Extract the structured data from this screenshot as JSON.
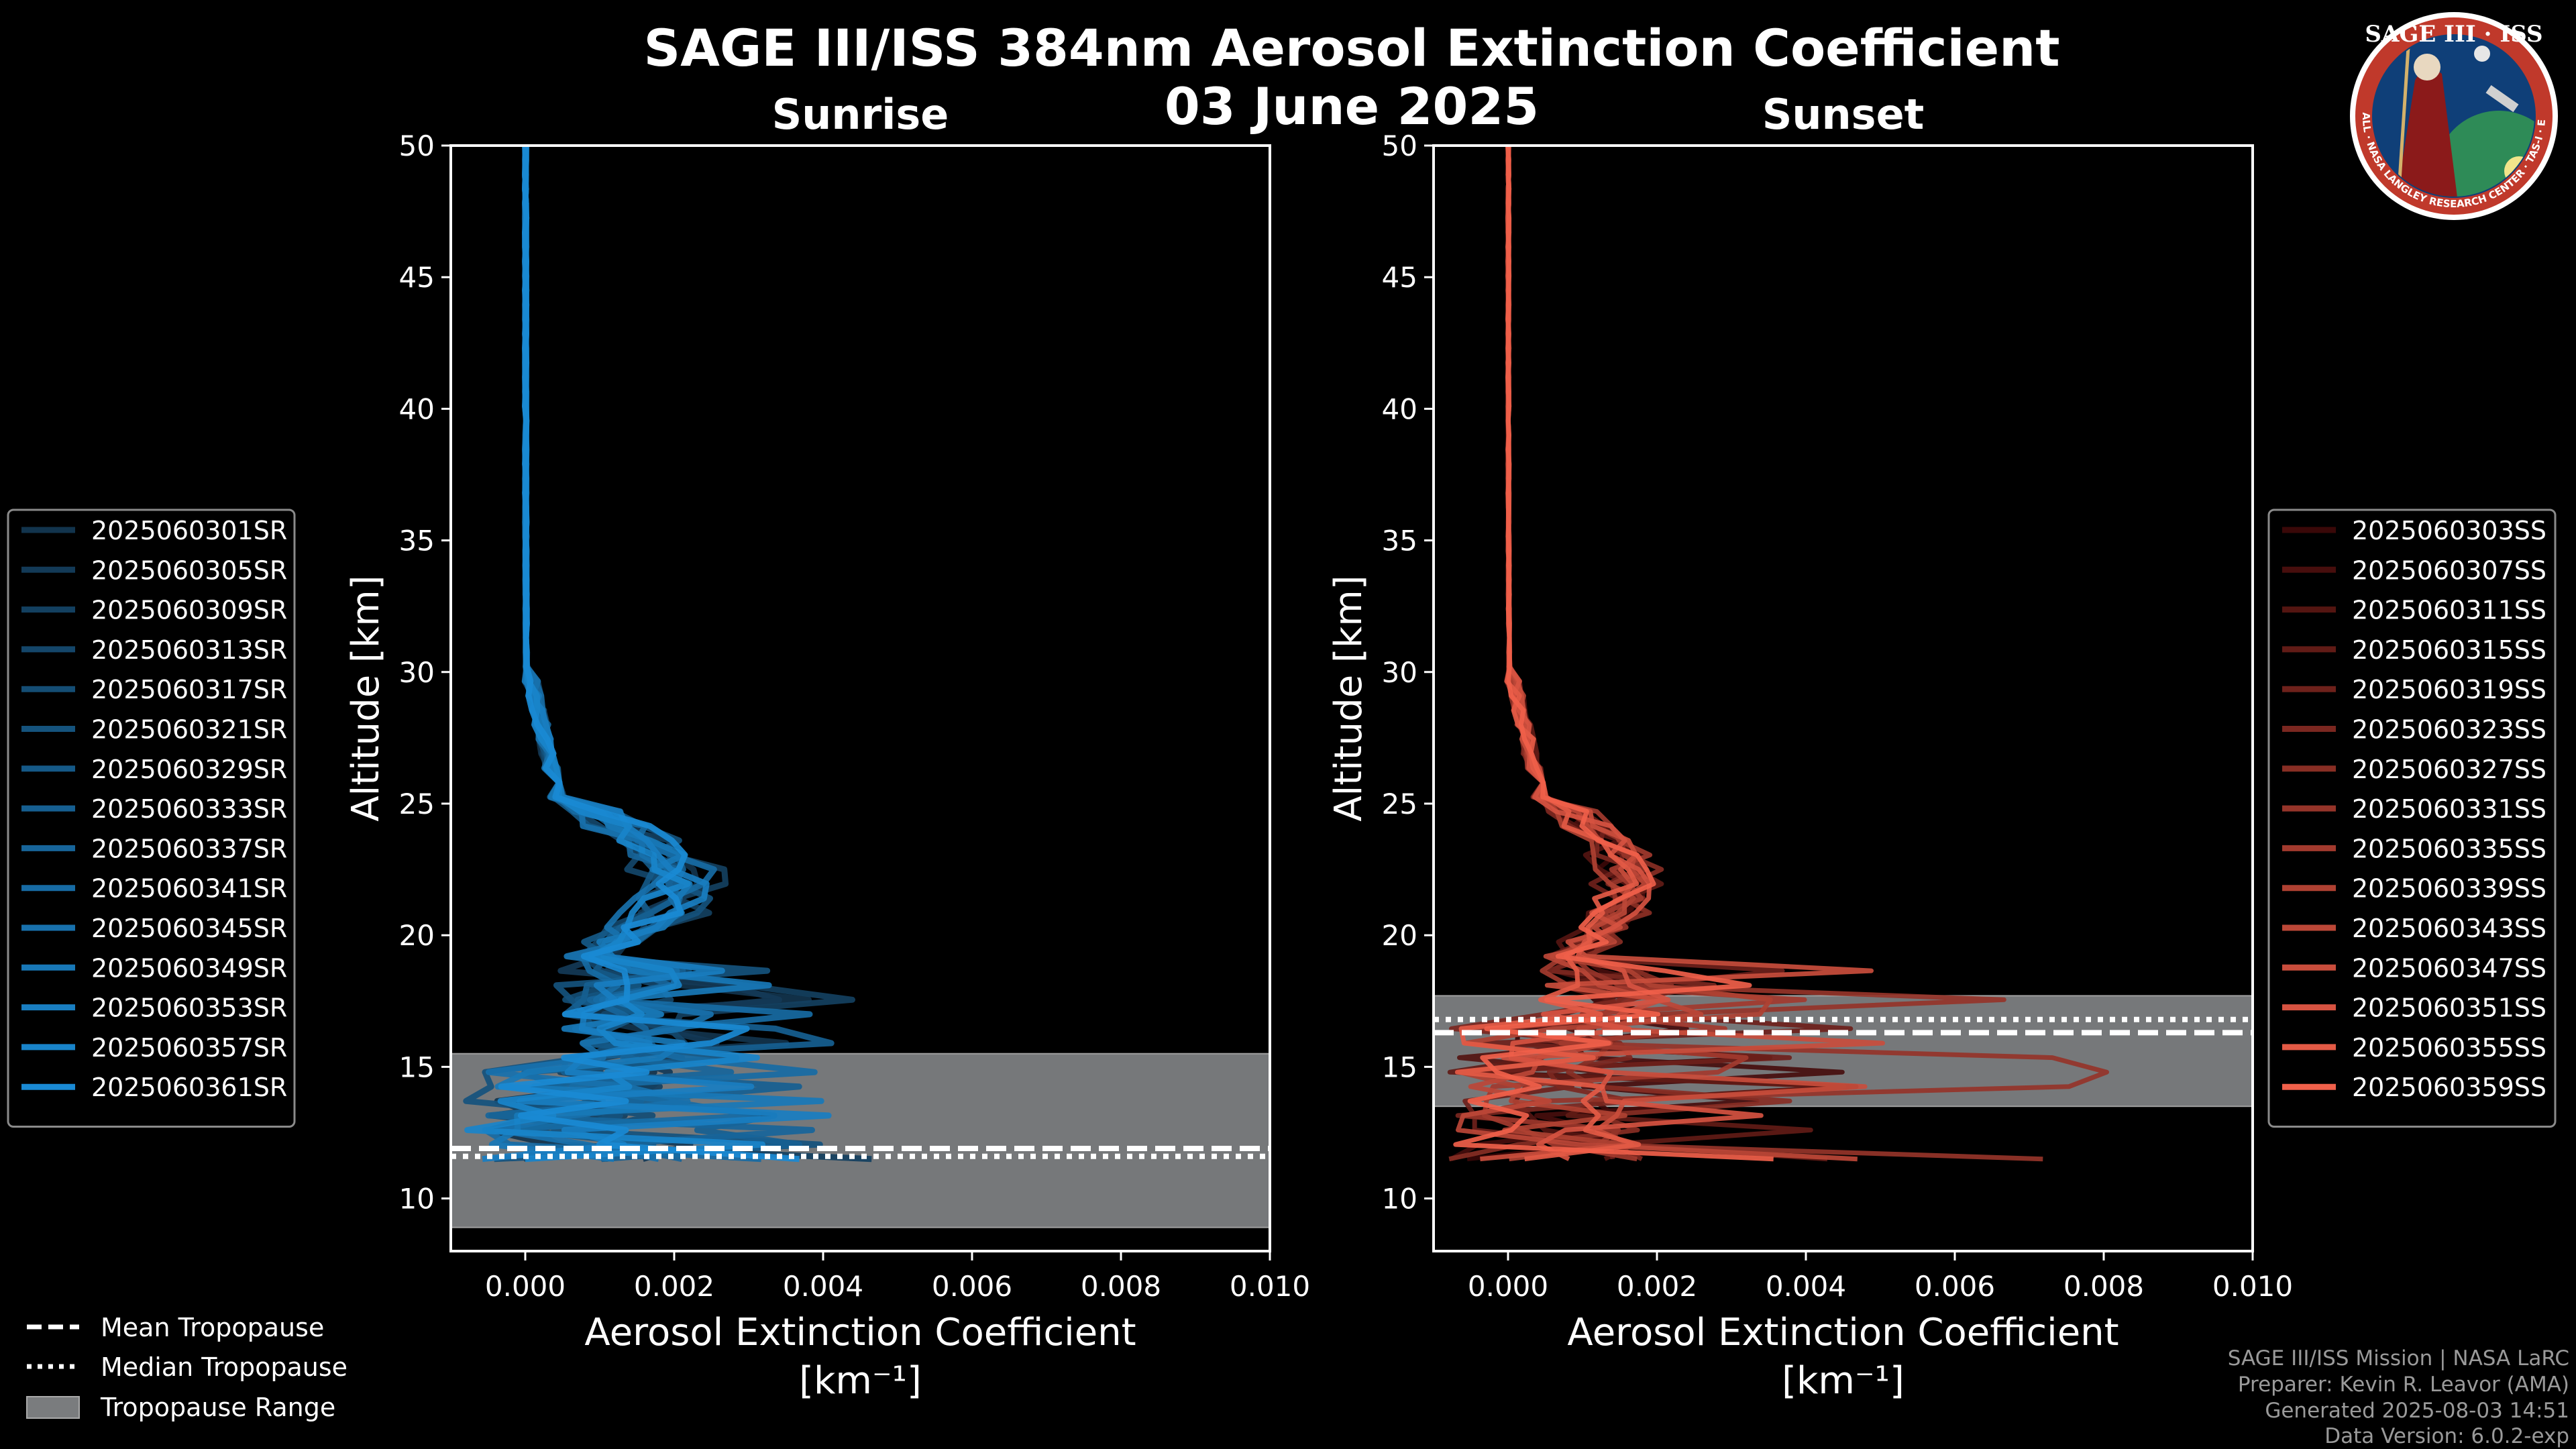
{
  "title": "SAGE III/ISS 384nm Aerosol Extinction Coefficient",
  "subtitle": "03 June 2025",
  "logo": {
    "top_text": "SAGE III · ISS",
    "ring_text": "BALL · NASA LANGLEY RESEARCH CENTER · TAS-I · ESA",
    "colors": {
      "ring": "#c0392b",
      "inner": "#0f3f78",
      "border": "#ffffff"
    }
  },
  "credits": [
    "SAGE III/ISS Mission | NASA LaRC",
    "Preparer: Kevin R. Leavor (AMA)",
    "Generated 2025-08-03 14:51",
    "Data Version: 6.0.2-exp"
  ],
  "bottom_legend": [
    {
      "style": "dashed",
      "label": "Mean Tropopause"
    },
    {
      "style": "dotted",
      "label": "Median Tropopause"
    },
    {
      "style": "range",
      "label": "Tropopause Range"
    }
  ],
  "chart_data": [
    {
      "type": "line",
      "panel": "Sunrise",
      "title": "Sunrise",
      "xlabel": "Aerosol Extinction Coefficient",
      "xlabel_units": "[km⁻¹]",
      "ylabel": "Altitude [km]",
      "xlim": [
        -0.001,
        0.01
      ],
      "ylim": [
        8,
        50
      ],
      "xticks": [
        0.0,
        0.002,
        0.004,
        0.006,
        0.008,
        0.01
      ],
      "xtick_labels": [
        "0.000",
        "0.002",
        "0.004",
        "0.006",
        "0.008",
        "0.010"
      ],
      "yticks": [
        10,
        15,
        20,
        25,
        30,
        35,
        40,
        45,
        50
      ],
      "tropopause": {
        "mean": 11.9,
        "median": 11.6,
        "range": [
          8.9,
          15.5
        ]
      },
      "color_dark": "#12344d",
      "color_light": "#1a8ad4",
      "series": [
        {
          "name": "2025060301SR",
          "peak": 0.0024,
          "low_spike": 0.003
        },
        {
          "name": "2025060305SR",
          "peak": 0.002,
          "low_spike": 0.0022
        },
        {
          "name": "2025060309SR",
          "peak": 0.0027,
          "low_spike": 0.0037
        },
        {
          "name": "2025060313SR",
          "peak": 0.0018,
          "low_spike": 0.0025
        },
        {
          "name": "2025060317SR",
          "peak": 0.0022,
          "low_spike": 0.0032
        },
        {
          "name": "2025060321SR",
          "peak": 0.0025,
          "low_spike": 0.0028
        },
        {
          "name": "2025060329SR",
          "peak": 0.0019,
          "low_spike": 0.0021
        },
        {
          "name": "2025060333SR",
          "peak": 0.0023,
          "low_spike": 0.0033
        },
        {
          "name": "2025060337SR",
          "peak": 0.0021,
          "low_spike": 0.0026
        },
        {
          "name": "2025060341SR",
          "peak": 0.0026,
          "low_spike": 0.0029
        },
        {
          "name": "2025060345SR",
          "peak": 0.0017,
          "low_spike": 0.0024
        },
        {
          "name": "2025060349SR",
          "peak": 0.0022,
          "low_spike": 0.0027
        },
        {
          "name": "2025060353SR",
          "peak": 0.0024,
          "low_spike": 0.0031
        },
        {
          "name": "2025060357SR",
          "peak": 0.002,
          "low_spike": 0.0026
        },
        {
          "name": "2025060361SR",
          "peak": 0.0023,
          "low_spike": 0.0029
        }
      ]
    },
    {
      "type": "line",
      "panel": "Sunset",
      "title": "Sunset",
      "xlabel": "Aerosol Extinction Coefficient",
      "xlabel_units": "[km⁻¹]",
      "ylabel": "Altitude [km]",
      "xlim": [
        -0.001,
        0.01
      ],
      "ylim": [
        8,
        50
      ],
      "xticks": [
        0.0,
        0.002,
        0.004,
        0.006,
        0.008,
        0.01
      ],
      "xtick_labels": [
        "0.000",
        "0.002",
        "0.004",
        "0.006",
        "0.008",
        "0.010"
      ],
      "yticks": [
        10,
        15,
        20,
        25,
        30,
        35,
        40,
        45,
        50
      ],
      "tropopause": {
        "mean": 16.3,
        "median": 16.8,
        "range": [
          13.5,
          17.7
        ]
      },
      "color_dark": "#3a0808",
      "color_light": "#f0604a",
      "series": [
        {
          "name": "2025060303SS",
          "peak": 0.0016,
          "low_spike": 0.005
        },
        {
          "name": "2025060307SS",
          "peak": 0.0018,
          "low_spike": 0.003
        },
        {
          "name": "2025060311SS",
          "peak": 0.0014,
          "low_spike": 0.0025
        },
        {
          "name": "2025060315SS",
          "peak": 0.0019,
          "low_spike": 0.0034
        },
        {
          "name": "2025060319SS",
          "peak": 0.0015,
          "low_spike": 0.0042
        },
        {
          "name": "2025060323SS",
          "peak": 0.0017,
          "low_spike": 0.0028
        },
        {
          "name": "2025060327SS",
          "peak": 0.002,
          "low_spike": 0.0024
        },
        {
          "name": "2025060331SS",
          "peak": 0.0016,
          "low_spike": 0.0082
        },
        {
          "name": "2025060335SS",
          "peak": 0.0018,
          "low_spike": 0.0036
        },
        {
          "name": "2025060339SS",
          "peak": 0.0014,
          "low_spike": 0.0027
        },
        {
          "name": "2025060343SS",
          "peak": 0.0019,
          "low_spike": 0.0031
        },
        {
          "name": "2025060347SS",
          "peak": 0.0016,
          "low_spike": 0.0045
        },
        {
          "name": "2025060351SS",
          "peak": 0.0018,
          "low_spike": 0.0026
        },
        {
          "name": "2025060355SS",
          "peak": 0.0015,
          "low_spike": 0.0022
        },
        {
          "name": "2025060359SS",
          "peak": 0.0017,
          "low_spike": 0.002
        }
      ]
    }
  ]
}
